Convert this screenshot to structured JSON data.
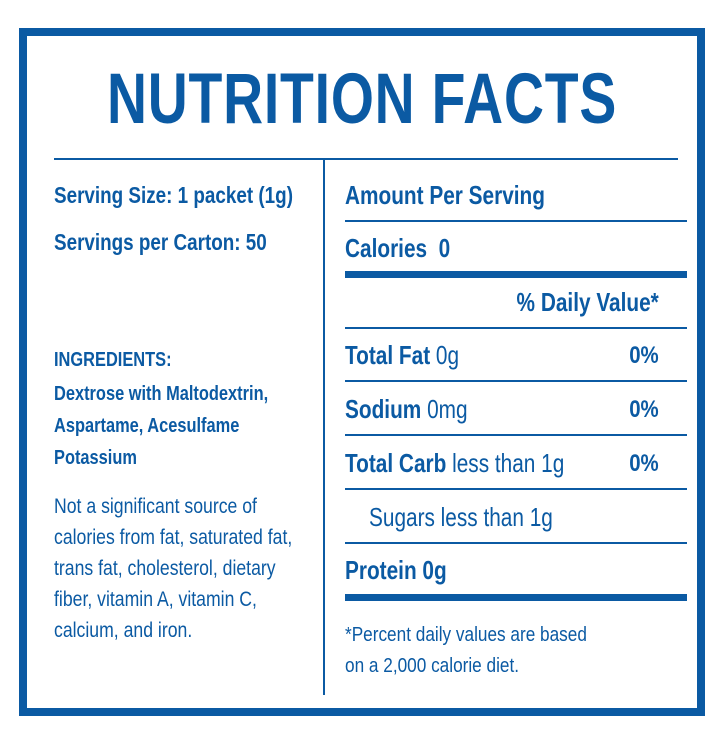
{
  "title": "NUTRITION FACTS",
  "left": {
    "serving_size": "Serving Size: 1 packet (1g)",
    "servings_per_carton": "Servings per Carton: 50",
    "ingredients_heading": "INGREDIENTS:",
    "ingredients_lines": [
      "Dextrose with Maltodextrin,",
      "Aspartame, Acesulfame",
      "Potassium"
    ],
    "note_lines": [
      "Not a significant source of",
      "calories from fat, saturated fat,",
      "trans fat, cholesterol, dietary",
      "fiber, vitamin A, vitamin C,",
      "calcium, and iron."
    ]
  },
  "right": {
    "amount_per_serving": "Amount Per Serving",
    "calories_label": "Calories",
    "calories_value": "0",
    "daily_value_header": "% Daily Value*",
    "rows": [
      {
        "label": "Total Fat",
        "amount": "0g",
        "dv": "0%"
      },
      {
        "label": "Sodium",
        "amount": "0mg",
        "dv": "0%"
      },
      {
        "label": "Total Carb",
        "amount": "less than 1g",
        "dv": "0%"
      }
    ],
    "sugars": "Sugars less than 1g",
    "protein": "Protein 0g",
    "footnote_lines": [
      "*Percent daily values are based",
      "on a 2,000 calorie diet."
    ]
  },
  "colors": {
    "brand_blue": "#0b5aa3",
    "background": "#ffffff"
  }
}
